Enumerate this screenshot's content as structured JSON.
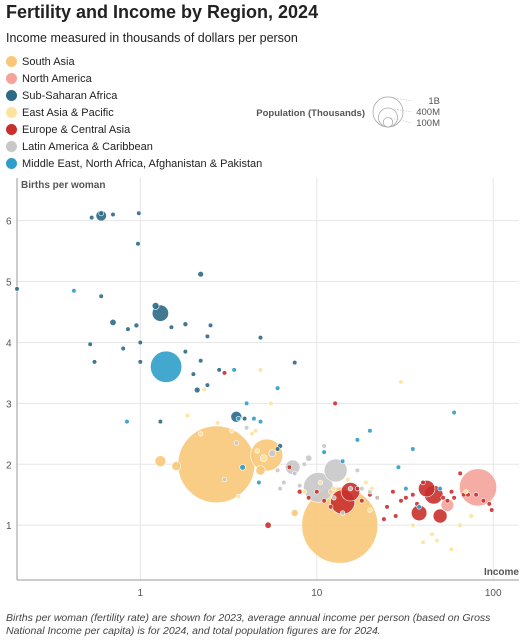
{
  "title": "Fertility and Income by Region, 2024",
  "subtitle": "Income measured in thousands of dollars per person",
  "footnote": "Births per woman (fertility rate) are shown for 2023, average annual income per person (based on Gross National Income per capita) is for 2024, and total population figures are for 2024.",
  "size_legend": {
    "title": "Population (Thousands)",
    "labels": [
      "1B",
      "400M",
      "100M"
    ]
  },
  "chart_data": {
    "type": "scatter",
    "title": "Fertility and Income by Region, 2024",
    "subtitle": "Income measured in thousands of dollars per person",
    "xlabel": "Income",
    "ylabel": "Births per woman",
    "x_scale": "log",
    "xlim": [
      0.2,
      140
    ],
    "ylim": [
      0.1,
      6.7
    ],
    "x_ticks": [
      1,
      10,
      100
    ],
    "x_tick_labels": [
      "1",
      "10",
      "100"
    ],
    "y_ticks": [
      1,
      2,
      3,
      4,
      5,
      6
    ],
    "grid": true,
    "legend_position": "top-left",
    "series": [
      {
        "name": "South Asia",
        "color": "#F8C878",
        "points": [
          {
            "x": 2.7,
            "y": 2.0,
            "pop": 1440000
          },
          {
            "x": 13.5,
            "y": 1.0,
            "pop": 1410000
          },
          {
            "x": 5.2,
            "y": 2.15,
            "pop": 250000
          },
          {
            "x": 1.3,
            "y": 2.05,
            "pop": 30000
          },
          {
            "x": 1.6,
            "y": 1.97,
            "pop": 20000
          },
          {
            "x": 4.8,
            "y": 1.9,
            "pop": 22000
          },
          {
            "x": 12.0,
            "y": 1.55,
            "pop": 1000
          },
          {
            "x": 7.5,
            "y": 1.2,
            "pop": 12000
          }
        ]
      },
      {
        "name": "North America",
        "color": "#F4A39A",
        "points": [
          {
            "x": 82.0,
            "y": 1.62,
            "pop": 340000
          },
          {
            "x": 55.0,
            "y": 1.33,
            "pop": 40000
          }
        ]
      },
      {
        "name": "Sub-Saharan Africa",
        "color": "#2E6A86",
        "points": [
          {
            "x": 0.6,
            "y": 6.08,
            "pop": 27000
          },
          {
            "x": 0.6,
            "y": 6.12,
            "pop": 6000
          },
          {
            "x": 0.53,
            "y": 6.05,
            "pop": 5000
          },
          {
            "x": 0.7,
            "y": 6.1,
            "pop": 4000
          },
          {
            "x": 0.98,
            "y": 6.12,
            "pop": 4000
          },
          {
            "x": 0.97,
            "y": 5.62,
            "pop": 5000
          },
          {
            "x": 0.2,
            "y": 4.88,
            "pop": 3000
          },
          {
            "x": 0.6,
            "y": 4.76,
            "pop": 5000
          },
          {
            "x": 1.3,
            "y": 4.48,
            "pop": 65000
          },
          {
            "x": 1.22,
            "y": 4.6,
            "pop": 12000
          },
          {
            "x": 2.2,
            "y": 5.12,
            "pop": 8000
          },
          {
            "x": 0.7,
            "y": 4.33,
            "pop": 10000
          },
          {
            "x": 0.85,
            "y": 4.22,
            "pop": 5000
          },
          {
            "x": 0.95,
            "y": 4.28,
            "pop": 6000
          },
          {
            "x": 1.5,
            "y": 4.25,
            "pop": 5000
          },
          {
            "x": 1.8,
            "y": 4.3,
            "pop": 6000
          },
          {
            "x": 2.5,
            "y": 4.28,
            "pop": 4000
          },
          {
            "x": 2.4,
            "y": 4.1,
            "pop": 3000
          },
          {
            "x": 0.52,
            "y": 3.97,
            "pop": 4000
          },
          {
            "x": 0.8,
            "y": 3.9,
            "pop": 2000
          },
          {
            "x": 1.0,
            "y": 4.0,
            "pop": 3000
          },
          {
            "x": 0.55,
            "y": 3.68,
            "pop": 3000
          },
          {
            "x": 1.0,
            "y": 3.68,
            "pop": 3000
          },
          {
            "x": 1.8,
            "y": 3.85,
            "pop": 3000
          },
          {
            "x": 2.2,
            "y": 3.7,
            "pop": 2000
          },
          {
            "x": 2.8,
            "y": 3.55,
            "pop": 2000
          },
          {
            "x": 4.8,
            "y": 4.08,
            "pop": 1000
          },
          {
            "x": 7.5,
            "y": 3.67,
            "pop": 1000
          },
          {
            "x": 2.0,
            "y": 3.48,
            "pop": 5000
          },
          {
            "x": 2.4,
            "y": 3.3,
            "pop": 2000
          },
          {
            "x": 2.1,
            "y": 3.22,
            "pop": 8000
          },
          {
            "x": 3.5,
            "y": 2.78,
            "pop": 30000
          },
          {
            "x": 3.9,
            "y": 2.75,
            "pop": 3000
          },
          {
            "x": 6.2,
            "y": 2.3,
            "pop": 6000
          },
          {
            "x": 6.0,
            "y": 2.25,
            "pop": 3000
          },
          {
            "x": 1.3,
            "y": 2.7,
            "pop": 1500
          }
        ]
      },
      {
        "name": "East Asia & Pacific",
        "color": "#FCE4A0",
        "points": [
          {
            "x": 2.3,
            "y": 3.23,
            "pop": 1000
          },
          {
            "x": 1.85,
            "y": 2.8,
            "pop": 1000
          },
          {
            "x": 2.2,
            "y": 2.5,
            "pop": 1000
          },
          {
            "x": 2.75,
            "y": 2.68,
            "pop": 1000
          },
          {
            "x": 3.3,
            "y": 2.55,
            "pop": 1000
          },
          {
            "x": 4.5,
            "y": 2.55,
            "pop": 1000
          },
          {
            "x": 5.5,
            "y": 3.0,
            "pop": 1000
          },
          {
            "x": 4.8,
            "y": 3.55,
            "pop": 1000
          },
          {
            "x": 5.0,
            "y": 2.1,
            "pop": 12000
          },
          {
            "x": 4.3,
            "y": 2.5,
            "pop": 1000
          },
          {
            "x": 4.6,
            "y": 2.22,
            "pop": 1000
          },
          {
            "x": 3.6,
            "y": 1.47,
            "pop": 1000
          },
          {
            "x": 8.5,
            "y": 1.55,
            "pop": 1000
          },
          {
            "x": 10.5,
            "y": 1.7,
            "pop": 1000
          },
          {
            "x": 12.5,
            "y": 1.6,
            "pop": 1000
          },
          {
            "x": 15.0,
            "y": 1.75,
            "pop": 1000
          },
          {
            "x": 19.0,
            "y": 1.7,
            "pop": 1000
          },
          {
            "x": 20.0,
            "y": 1.25,
            "pop": 1000
          },
          {
            "x": 30.0,
            "y": 3.35,
            "pop": 1000
          },
          {
            "x": 35.0,
            "y": 1.0,
            "pop": 1000
          },
          {
            "x": 40.0,
            "y": 0.72,
            "pop": 1000
          },
          {
            "x": 45.0,
            "y": 0.85,
            "pop": 1000
          },
          {
            "x": 48.0,
            "y": 0.75,
            "pop": 1000
          },
          {
            "x": 58.0,
            "y": 0.6,
            "pop": 1000
          },
          {
            "x": 65.0,
            "y": 1.0,
            "pop": 1000
          },
          {
            "x": 70.0,
            "y": 1.55,
            "pop": 1000
          },
          {
            "x": 75.0,
            "y": 1.15,
            "pop": 1000
          },
          {
            "x": 20.5,
            "y": 1.6,
            "pop": 1000
          }
        ]
      },
      {
        "name": "Europe & Central Asia",
        "color": "#C9302C",
        "points": [
          {
            "x": 14.0,
            "y": 1.38,
            "pop": 145000
          },
          {
            "x": 15.5,
            "y": 1.55,
            "pop": 85000
          },
          {
            "x": 42.0,
            "y": 1.6,
            "pop": 68000
          },
          {
            "x": 46.0,
            "y": 1.5,
            "pop": 84000
          },
          {
            "x": 38.0,
            "y": 1.2,
            "pop": 59000
          },
          {
            "x": 50.0,
            "y": 1.15,
            "pop": 48000
          },
          {
            "x": 5.3,
            "y": 1.0,
            "pop": 10000
          },
          {
            "x": 7.0,
            "y": 1.95,
            "pop": 3000
          },
          {
            "x": 8.0,
            "y": 1.55,
            "pop": 6000
          },
          {
            "x": 9.0,
            "y": 1.45,
            "pop": 3000
          },
          {
            "x": 10.0,
            "y": 1.55,
            "pop": 3000
          },
          {
            "x": 11.0,
            "y": 1.4,
            "pop": 3000
          },
          {
            "x": 12.0,
            "y": 1.3,
            "pop": 3000
          },
          {
            "x": 17.0,
            "y": 1.6,
            "pop": 3000
          },
          {
            "x": 18.0,
            "y": 1.4,
            "pop": 3000
          },
          {
            "x": 20.0,
            "y": 1.5,
            "pop": 3000
          },
          {
            "x": 22.0,
            "y": 1.45,
            "pop": 3000
          },
          {
            "x": 25.0,
            "y": 1.3,
            "pop": 3000
          },
          {
            "x": 27.0,
            "y": 1.55,
            "pop": 3000
          },
          {
            "x": 30.0,
            "y": 1.4,
            "pop": 3000
          },
          {
            "x": 32.0,
            "y": 1.45,
            "pop": 3000
          },
          {
            "x": 35.0,
            "y": 1.5,
            "pop": 3000
          },
          {
            "x": 37.0,
            "y": 1.35,
            "pop": 3000
          },
          {
            "x": 40.0,
            "y": 1.7,
            "pop": 3000
          },
          {
            "x": 52.0,
            "y": 1.45,
            "pop": 3000
          },
          {
            "x": 55.0,
            "y": 1.4,
            "pop": 3000
          },
          {
            "x": 58.0,
            "y": 1.55,
            "pop": 3000
          },
          {
            "x": 60.0,
            "y": 1.45,
            "pop": 3000
          },
          {
            "x": 65.0,
            "y": 1.85,
            "pop": 3000
          },
          {
            "x": 68.0,
            "y": 1.5,
            "pop": 3000
          },
          {
            "x": 72.0,
            "y": 1.5,
            "pop": 3000
          },
          {
            "x": 80.0,
            "y": 1.5,
            "pop": 3000
          },
          {
            "x": 88.0,
            "y": 1.4,
            "pop": 3000
          },
          {
            "x": 95.0,
            "y": 1.35,
            "pop": 3000
          },
          {
            "x": 98.0,
            "y": 1.25,
            "pop": 3000
          },
          {
            "x": 12.7,
            "y": 3.0,
            "pop": 2000
          },
          {
            "x": 3.0,
            "y": 3.5,
            "pop": 3000
          },
          {
            "x": 28.0,
            "y": 1.15,
            "pop": 3000
          },
          {
            "x": 24.0,
            "y": 1.1,
            "pop": 3000
          }
        ]
      },
      {
        "name": "Latin America & Caribbean",
        "color": "#C8C8C8",
        "points": [
          {
            "x": 10.2,
            "y": 1.62,
            "pop": 216000
          },
          {
            "x": 12.8,
            "y": 1.9,
            "pop": 130000
          },
          {
            "x": 5.6,
            "y": 2.18,
            "pop": 12000
          },
          {
            "x": 7.3,
            "y": 1.95,
            "pop": 52000
          },
          {
            "x": 9.0,
            "y": 2.1,
            "pop": 10000
          },
          {
            "x": 11.0,
            "y": 2.3,
            "pop": 3000
          },
          {
            "x": 12.5,
            "y": 1.45,
            "pop": 3000
          },
          {
            "x": 15.5,
            "y": 1.6,
            "pop": 3000
          },
          {
            "x": 17.0,
            "y": 1.9,
            "pop": 3000
          },
          {
            "x": 18.0,
            "y": 1.6,
            "pop": 3000
          },
          {
            "x": 20.0,
            "y": 1.55,
            "pop": 3000
          },
          {
            "x": 6.5,
            "y": 1.7,
            "pop": 3000
          },
          {
            "x": 7.5,
            "y": 1.85,
            "pop": 3000
          },
          {
            "x": 3.0,
            "y": 1.75,
            "pop": 3000
          },
          {
            "x": 4.0,
            "y": 2.6,
            "pop": 3000
          },
          {
            "x": 6.0,
            "y": 1.9,
            "pop": 3000
          },
          {
            "x": 8.0,
            "y": 1.65,
            "pop": 3000
          },
          {
            "x": 22.0,
            "y": 1.45,
            "pop": 3000
          },
          {
            "x": 8.5,
            "y": 2.0,
            "pop": 3000
          },
          {
            "x": 14.0,
            "y": 1.2,
            "pop": 3000
          },
          {
            "x": 3.5,
            "y": 2.35,
            "pop": 3000
          },
          {
            "x": 6.2,
            "y": 1.6,
            "pop": 3000
          }
        ]
      },
      {
        "name": "Middle East, North Africa, Afghanistan & Pakistan",
        "color": "#2E9FC8",
        "points": [
          {
            "x": 1.4,
            "y": 3.6,
            "pop": 240000
          },
          {
            "x": 0.42,
            "y": 4.85,
            "pop": 2000
          },
          {
            "x": 0.84,
            "y": 2.7,
            "pop": 2000
          },
          {
            "x": 3.4,
            "y": 3.55,
            "pop": 2000
          },
          {
            "x": 3.6,
            "y": 2.75,
            "pop": 2000
          },
          {
            "x": 4.4,
            "y": 2.75,
            "pop": 1000
          },
          {
            "x": 6.0,
            "y": 3.25,
            "pop": 3000
          },
          {
            "x": 4.8,
            "y": 2.7,
            "pop": 4000
          },
          {
            "x": 4.0,
            "y": 3.0,
            "pop": 3000
          },
          {
            "x": 3.8,
            "y": 1.95,
            "pop": 8000
          },
          {
            "x": 4.7,
            "y": 1.7,
            "pop": 5000
          },
          {
            "x": 11.0,
            "y": 2.2,
            "pop": 3000
          },
          {
            "x": 14.0,
            "y": 2.05,
            "pop": 3000
          },
          {
            "x": 17.0,
            "y": 2.4,
            "pop": 3000
          },
          {
            "x": 20.0,
            "y": 2.55,
            "pop": 2000
          },
          {
            "x": 29.0,
            "y": 1.95,
            "pop": 2000
          },
          {
            "x": 35.0,
            "y": 2.25,
            "pop": 2000
          },
          {
            "x": 50.0,
            "y": 1.6,
            "pop": 2000
          },
          {
            "x": 60.0,
            "y": 2.85,
            "pop": 2000
          },
          {
            "x": 32.0,
            "y": 1.6,
            "pop": 3000
          },
          {
            "x": 38.0,
            "y": 1.3,
            "pop": 3000
          }
        ]
      }
    ]
  }
}
